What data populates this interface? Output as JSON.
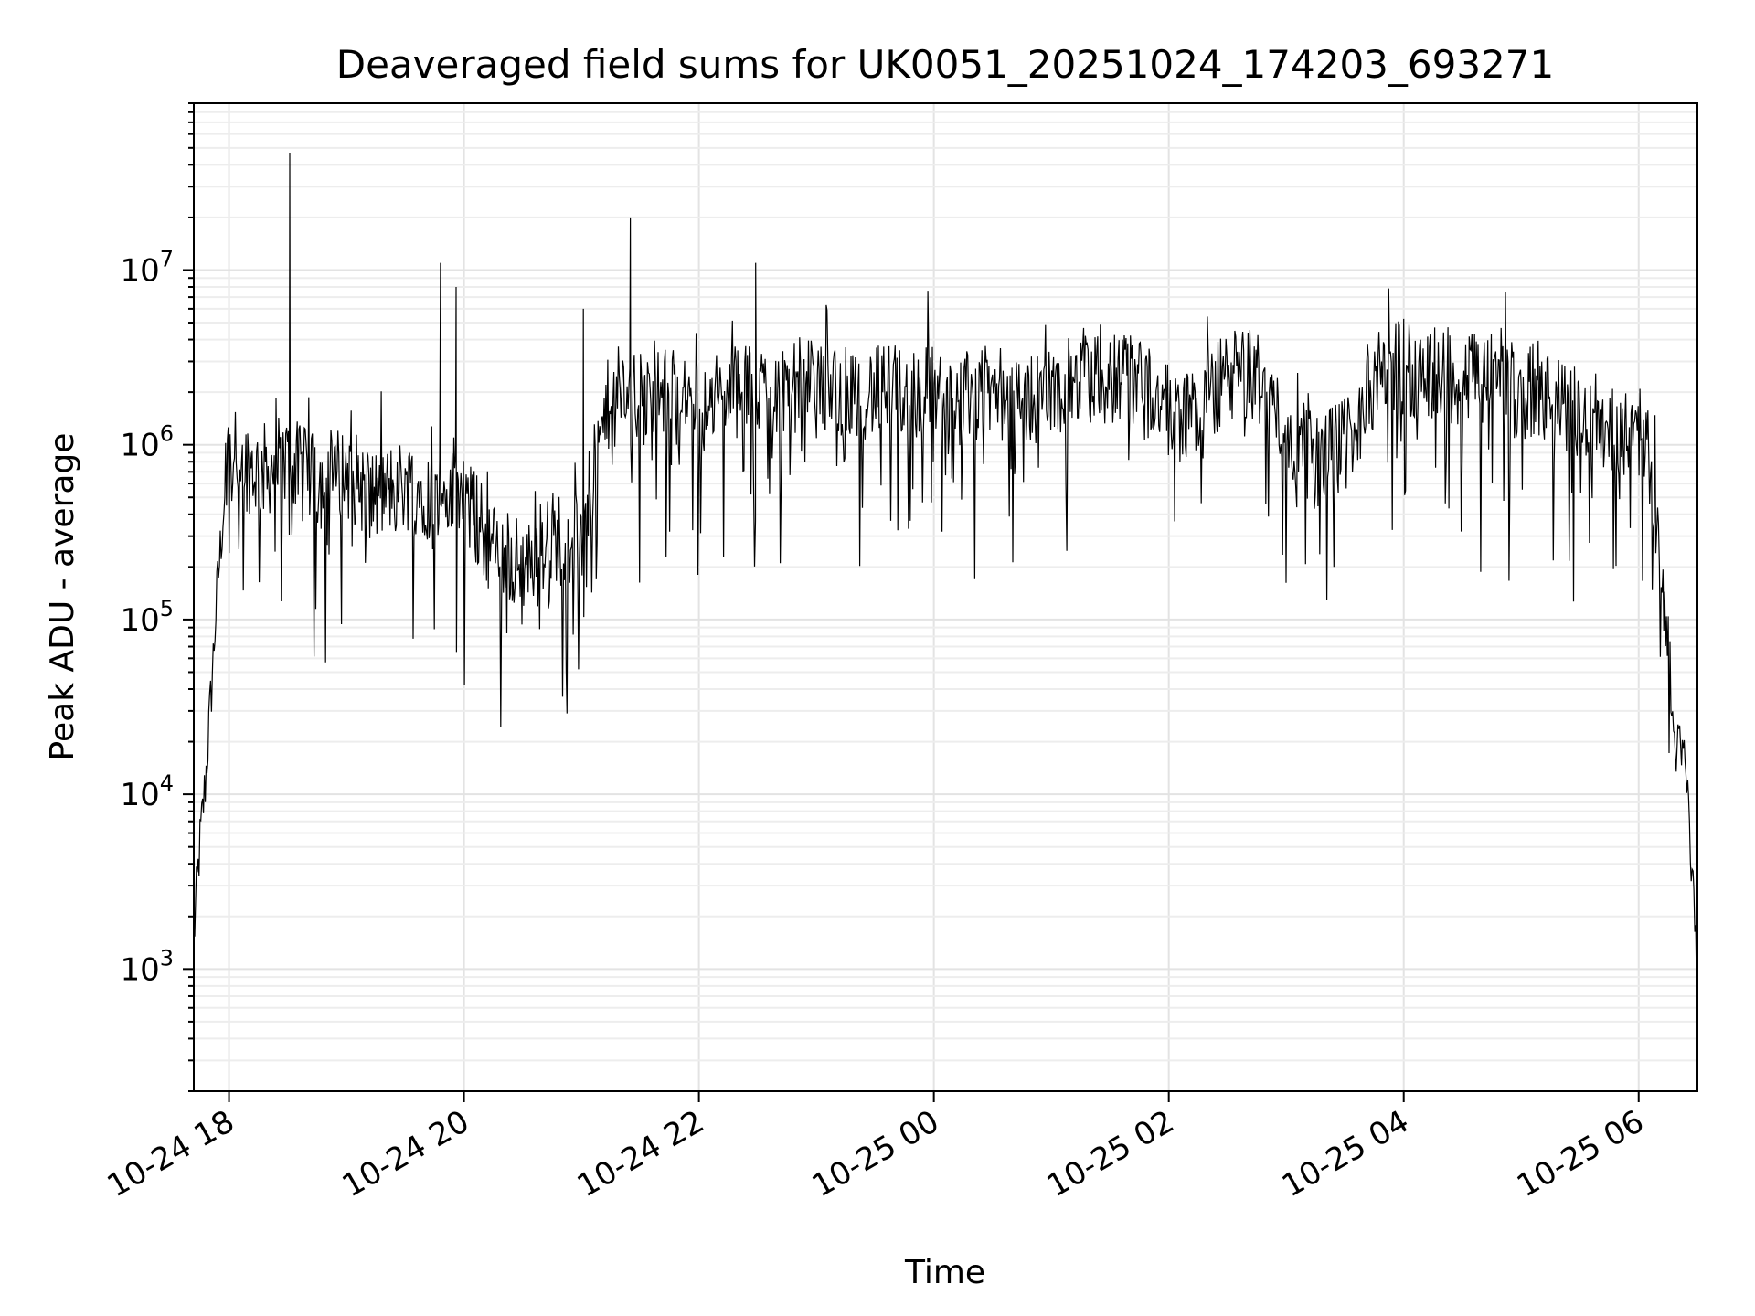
{
  "chart_data": {
    "type": "line",
    "title": "Deaveraged field sums for UK0051_20251024_174203_693271",
    "xlabel": "Time",
    "ylabel": "Peak ADU - average",
    "yscale": "log",
    "ylim": [
      200,
      90000000
    ],
    "xlim": [
      "2025-10-24 17:42",
      "2025-10-25 06:30"
    ],
    "grid": true,
    "legend": "none",
    "x_tick_labels": [
      "10-24 18",
      "10-24 20",
      "10-24 22",
      "10-25 00",
      "10-25 02",
      "10-25 04",
      "10-25 06"
    ],
    "x_ticks": [
      "2025-10-24 18:00",
      "2025-10-24 20:00",
      "2025-10-24 22:00",
      "2025-10-25 00:00",
      "2025-10-25 02:00",
      "2025-10-25 04:00",
      "2025-10-25 06:00"
    ],
    "y_ticks": [
      {
        "value": 1000,
        "base": "10",
        "exp": "3"
      },
      {
        "value": 10000,
        "base": "10",
        "exp": "4"
      },
      {
        "value": 100000,
        "base": "10",
        "exp": "5"
      },
      {
        "value": 1000000,
        "base": "10",
        "exp": "6"
      },
      {
        "value": 10000000,
        "base": "10",
        "exp": "7"
      }
    ],
    "line_color": "#000000",
    "series": [
      {
        "x": [
          "2025-10-24 17:42",
          "2025-10-24 17:45",
          "2025-10-24 17:48",
          "2025-10-24 17:51",
          "2025-10-24 17:54",
          "2025-10-24 17:57",
          "2025-10-24 18:00",
          "2025-10-24 18:15",
          "2025-10-24 18:30",
          "2025-10-24 18:45",
          "2025-10-24 19:00",
          "2025-10-24 19:15",
          "2025-10-24 19:30",
          "2025-10-24 19:45",
          "2025-10-24 20:00",
          "2025-10-24 20:15",
          "2025-10-24 20:30",
          "2025-10-24 20:45",
          "2025-10-24 21:00",
          "2025-10-24 21:15",
          "2025-10-24 21:30",
          "2025-10-24 21:45",
          "2025-10-24 22:00",
          "2025-10-24 22:15",
          "2025-10-24 22:30",
          "2025-10-24 22:45",
          "2025-10-24 23:00",
          "2025-10-24 23:15",
          "2025-10-24 23:30",
          "2025-10-24 23:45",
          "2025-10-25 00:00",
          "2025-10-25 00:15",
          "2025-10-25 00:30",
          "2025-10-25 00:45",
          "2025-10-25 01:00",
          "2025-10-25 01:15",
          "2025-10-25 01:30",
          "2025-10-25 01:45",
          "2025-10-25 02:00",
          "2025-10-25 02:15",
          "2025-10-25 02:30",
          "2025-10-25 02:45",
          "2025-10-25 03:00",
          "2025-10-25 03:15",
          "2025-10-25 03:30",
          "2025-10-25 03:45",
          "2025-10-25 04:00",
          "2025-10-25 04:15",
          "2025-10-25 04:30",
          "2025-10-25 04:45",
          "2025-10-25 05:00",
          "2025-10-25 05:15",
          "2025-10-25 05:30",
          "2025-10-25 05:45",
          "2025-10-25 06:00",
          "2025-10-25 06:06",
          "2025-10-25 06:12",
          "2025-10-25 06:18",
          "2025-10-25 06:24",
          "2025-10-25 06:30"
        ],
        "values": [
          1500,
          5000,
          12000,
          40000,
          150000,
          400000,
          900000,
          700000,
          800000,
          600000,
          700000,
          500000,
          600000,
          500000,
          500000,
          250000,
          200000,
          300000,
          300000,
          2000000,
          1800000,
          2000000,
          1500000,
          2000000,
          2000000,
          2200000,
          2200000,
          2000000,
          2000000,
          2000000,
          2000000,
          1800000,
          2000000,
          1800000,
          2000000,
          2300000,
          2400000,
          2500000,
          1500000,
          1500000,
          2500000,
          2500000,
          1200000,
          800000,
          1000000,
          2500000,
          2800000,
          2600000,
          2500000,
          2500000,
          2000000,
          1800000,
          1500000,
          1300000,
          1200000,
          800000,
          200000,
          20000,
          15000,
          1000
        ],
        "spikes": [
          {
            "x": "2025-10-24 18:31",
            "value": 47000000
          },
          {
            "x": "2025-10-24 19:48",
            "value": 11000000
          },
          {
            "x": "2025-10-24 19:56",
            "value": 8000000
          },
          {
            "x": "2025-10-24 21:25",
            "value": 20000000
          },
          {
            "x": "2025-10-24 22:29",
            "value": 11000000
          },
          {
            "x": "2025-10-24 21:01",
            "value": 6000000
          }
        ]
      }
    ]
  }
}
